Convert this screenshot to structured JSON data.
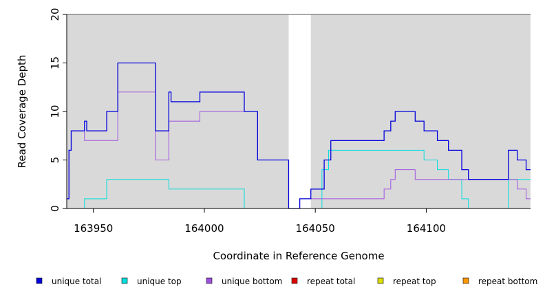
{
  "chart_data": {
    "type": "line",
    "step": true,
    "xlabel": "Coordinate in Reference Genome",
    "ylabel": "Read Coverage Depth",
    "xlim": [
      163938,
      164147
    ],
    "ylim": [
      0,
      20
    ],
    "x_ticks": [
      163950,
      164000,
      164050,
      164100
    ],
    "y_ticks": [
      0,
      5,
      10,
      15,
      20
    ],
    "background_color": "#d9d9d9",
    "gap": [
      164038,
      164048
    ],
    "legend_position": "bottom",
    "series": [
      {
        "name": "unique total",
        "color": "#0000dd",
        "points": [
          [
            163938,
            1
          ],
          [
            163939,
            6
          ],
          [
            163940,
            8
          ],
          [
            163946,
            9
          ],
          [
            163947,
            8
          ],
          [
            163956,
            10
          ],
          [
            163961,
            15
          ],
          [
            163978,
            8
          ],
          [
            163984,
            12
          ],
          [
            163985,
            11
          ],
          [
            163998,
            12
          ],
          [
            164018,
            10
          ],
          [
            164024,
            5
          ],
          [
            164038,
            0
          ],
          [
            164043,
            1
          ],
          [
            164048,
            2
          ],
          [
            164054,
            5
          ],
          [
            164057,
            7
          ],
          [
            164081,
            8
          ],
          [
            164084,
            9
          ],
          [
            164086,
            10
          ],
          [
            164095,
            9
          ],
          [
            164099,
            8
          ],
          [
            164105,
            7
          ],
          [
            164110,
            6
          ],
          [
            164116,
            4
          ],
          [
            164119,
            3
          ],
          [
            164137,
            6
          ],
          [
            164141,
            5
          ],
          [
            164145,
            4
          ],
          [
            164147,
            4
          ]
        ]
      },
      {
        "name": "unique top",
        "color": "#00dddd",
        "points": [
          [
            163938,
            0
          ],
          [
            163946,
            1
          ],
          [
            163956,
            3
          ],
          [
            163984,
            2
          ],
          [
            164018,
            0
          ],
          [
            164038,
            0
          ],
          [
            164048,
            0
          ],
          [
            164053,
            4
          ],
          [
            164056,
            6
          ],
          [
            164099,
            5
          ],
          [
            164105,
            4
          ],
          [
            164110,
            3
          ],
          [
            164116,
            1
          ],
          [
            164119,
            0
          ],
          [
            164137,
            3
          ],
          [
            164147,
            3
          ]
        ]
      },
      {
        "name": "unique bottom",
        "color": "#a050e0",
        "points": [
          [
            163938,
            1
          ],
          [
            163939,
            6
          ],
          [
            163940,
            8
          ],
          [
            163946,
            7
          ],
          [
            163961,
            12
          ],
          [
            163978,
            5
          ],
          [
            163984,
            9
          ],
          [
            163998,
            10
          ],
          [
            164018,
            10
          ],
          [
            164024,
            5
          ],
          [
            164038,
            0
          ],
          [
            164043,
            1
          ],
          [
            164081,
            2
          ],
          [
            164084,
            3
          ],
          [
            164086,
            4
          ],
          [
            164095,
            3
          ],
          [
            164137,
            3
          ],
          [
            164141,
            2
          ],
          [
            164145,
            1
          ],
          [
            164147,
            1
          ]
        ]
      },
      {
        "name": "repeat total",
        "color": "#dd0000",
        "points": [
          [
            163938,
            0
          ],
          [
            164038,
            0
          ],
          [
            164048,
            0
          ],
          [
            164147,
            0
          ]
        ]
      },
      {
        "name": "repeat top",
        "color": "#dddd00",
        "points": [
          [
            163938,
            0
          ],
          [
            164038,
            0
          ],
          [
            164048,
            0
          ],
          [
            164147,
            0
          ]
        ]
      },
      {
        "name": "repeat bottom",
        "color": "#ff9900",
        "points": [
          [
            163938,
            0
          ],
          [
            164038,
            0
          ],
          [
            164048,
            0
          ],
          [
            164147,
            0
          ]
        ]
      }
    ]
  }
}
